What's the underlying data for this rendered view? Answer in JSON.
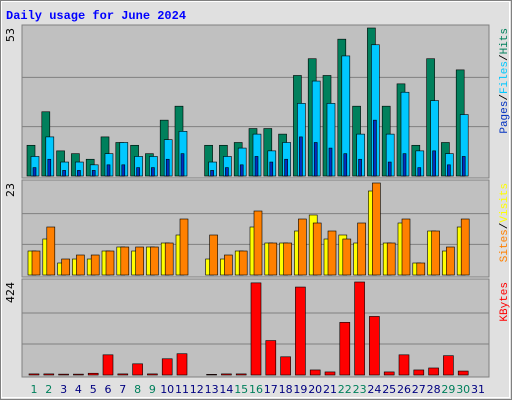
{
  "chart_data": {
    "type": "bar",
    "title": "Daily usage for June 2024",
    "categories": [
      "1",
      "2",
      "3",
      "4",
      "5",
      "6",
      "7",
      "8",
      "9",
      "10",
      "11",
      "12",
      "13",
      "14",
      "15",
      "16",
      "17",
      "18",
      "19",
      "20",
      "21",
      "22",
      "23",
      "24",
      "25",
      "26",
      "27",
      "28",
      "29",
      "30",
      "31"
    ],
    "category_colors": [
      "#00805c",
      "#00805c",
      "#000080",
      "#000080",
      "#000080",
      "#000080",
      "#000080",
      "#00805c",
      "#00805c",
      "#000080",
      "#000080",
      "#000080",
      "#000080",
      "#000080",
      "#00805c",
      "#00805c",
      "#000080",
      "#000080",
      "#000080",
      "#000080",
      "#000080",
      "#00805c",
      "#00805c",
      "#000080",
      "#000080",
      "#000080",
      "#000080",
      "#000080",
      "#00805c",
      "#00805c",
      "#000080"
    ],
    "legend_separator": "/",
    "panels": [
      {
        "ylim": [
          0,
          53
        ],
        "yticks": [
          53
        ],
        "legend_order": [
          2,
          1,
          0
        ],
        "series": [
          {
            "name": "Hits",
            "color": "#00805c",
            "values": [
              11,
              23,
              9,
              8,
              6,
              14,
              12,
              11,
              8,
              20,
              25,
              0,
              11,
              11,
              12,
              17,
              17,
              15,
              36,
              42,
              36,
              49,
              25,
              53,
              25,
              33,
              11,
              42,
              12,
              38,
              0
            ]
          },
          {
            "name": "Files",
            "color": "#00c8ff",
            "values": [
              7,
              14,
              5,
              5,
              4,
              8,
              12,
              7,
              7,
              13,
              16,
              0,
              5,
              7,
              10,
              15,
              9,
              12,
              26,
              34,
              26,
              43,
              15,
              47,
              15,
              30,
              9,
              27,
              8,
              22,
              0
            ]
          },
          {
            "name": "Pages",
            "color": "#0030c0",
            "values": [
              3,
              6,
              2,
              2,
              2,
              4,
              4,
              3,
              3,
              6,
              8,
              0,
              2,
              3,
              4,
              7,
              5,
              6,
              14,
              12,
              10,
              8,
              6,
              20,
              5,
              8,
              3,
              9,
              4,
              7,
              0
            ]
          }
        ]
      },
      {
        "ylim": [
          0,
          23
        ],
        "yticks": [
          23
        ],
        "legend_order": [
          1,
          0
        ],
        "series": [
          {
            "name": "Visits",
            "color": "#ffff00",
            "values": [
              6,
              9,
              3,
              4,
              4,
              6,
              7,
              6,
              7,
              8,
              10,
              0,
              4,
              4,
              6,
              12,
              8,
              8,
              11,
              15,
              9,
              10,
              8,
              21,
              8,
              13,
              3,
              11,
              6,
              12,
              0
            ]
          },
          {
            "name": "Sites",
            "color": "#ff8000",
            "values": [
              6,
              12,
              4,
              5,
              5,
              6,
              7,
              7,
              7,
              8,
              14,
              0,
              10,
              5,
              6,
              16,
              8,
              8,
              14,
              13,
              11,
              9,
              13,
              23,
              8,
              14,
              3,
              11,
              7,
              14,
              0
            ]
          }
        ]
      },
      {
        "ylim": [
          0,
          424
        ],
        "yticks": [
          424
        ],
        "legend_order": [
          0
        ],
        "series": [
          {
            "name": "KBytes",
            "color": "#ff0000",
            "values": [
              5,
              5,
              4,
              4,
              8,
              92,
              5,
              51,
              5,
              74,
              97,
              0,
              3,
              5,
              5,
              420,
              157,
              83,
              401,
              23,
              14,
              240,
              424,
              267,
              14,
              92,
              23,
              32,
              88,
              18,
              0
            ]
          }
        ]
      }
    ]
  }
}
